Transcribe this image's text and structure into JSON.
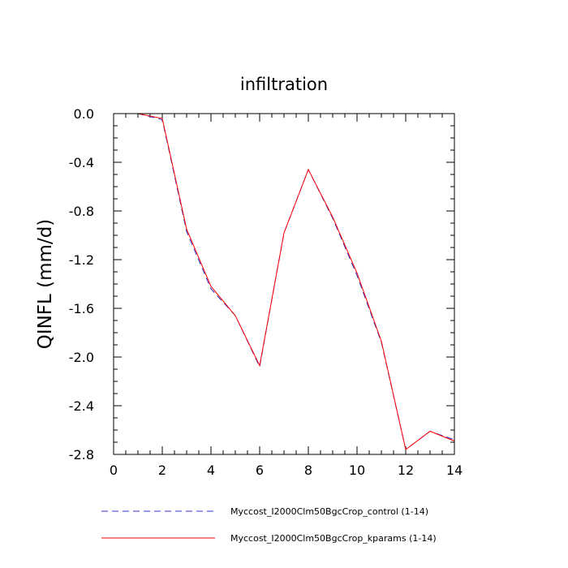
{
  "chart_data": {
    "type": "line",
    "title": "infiltration",
    "xlabel": "",
    "ylabel": "QINFL  (mm/d)",
    "xlim": [
      0,
      14
    ],
    "ylim": [
      -2.8,
      0.0
    ],
    "xticks": [
      0,
      2,
      4,
      6,
      8,
      10,
      12,
      14
    ],
    "yticks": [
      0.0,
      -0.4,
      -0.8,
      -1.2,
      -1.6,
      -2.0,
      -2.4,
      -2.8
    ],
    "ytick_labels": [
      "0.0",
      "-0.4",
      "-0.8",
      "-1.2",
      "-1.6",
      "-2.0",
      "-2.4",
      "-2.8"
    ],
    "grid": false,
    "legend_position": "bottom",
    "x": [
      1,
      2,
      3,
      4,
      5,
      6,
      7,
      8,
      9,
      10,
      11,
      12,
      13,
      14
    ],
    "series": [
      {
        "name": "Myccost_I2000Clm50BgcCrop_control (1-14)",
        "color": "#3333cc",
        "style": "dashed",
        "values": [
          0.0,
          -0.05,
          -0.97,
          -1.44,
          -1.66,
          -2.08,
          -0.98,
          -0.46,
          -0.86,
          -1.33,
          -1.88,
          -2.76,
          -2.61,
          -2.68
        ]
      },
      {
        "name": "Myccost_I2000Clm50BgcCrop_kparams (1-14)",
        "color": "#ff0000",
        "style": "solid",
        "values": [
          0.0,
          -0.04,
          -0.95,
          -1.42,
          -1.66,
          -2.07,
          -0.98,
          -0.46,
          -0.85,
          -1.31,
          -1.87,
          -2.76,
          -2.61,
          -2.69
        ]
      }
    ]
  }
}
